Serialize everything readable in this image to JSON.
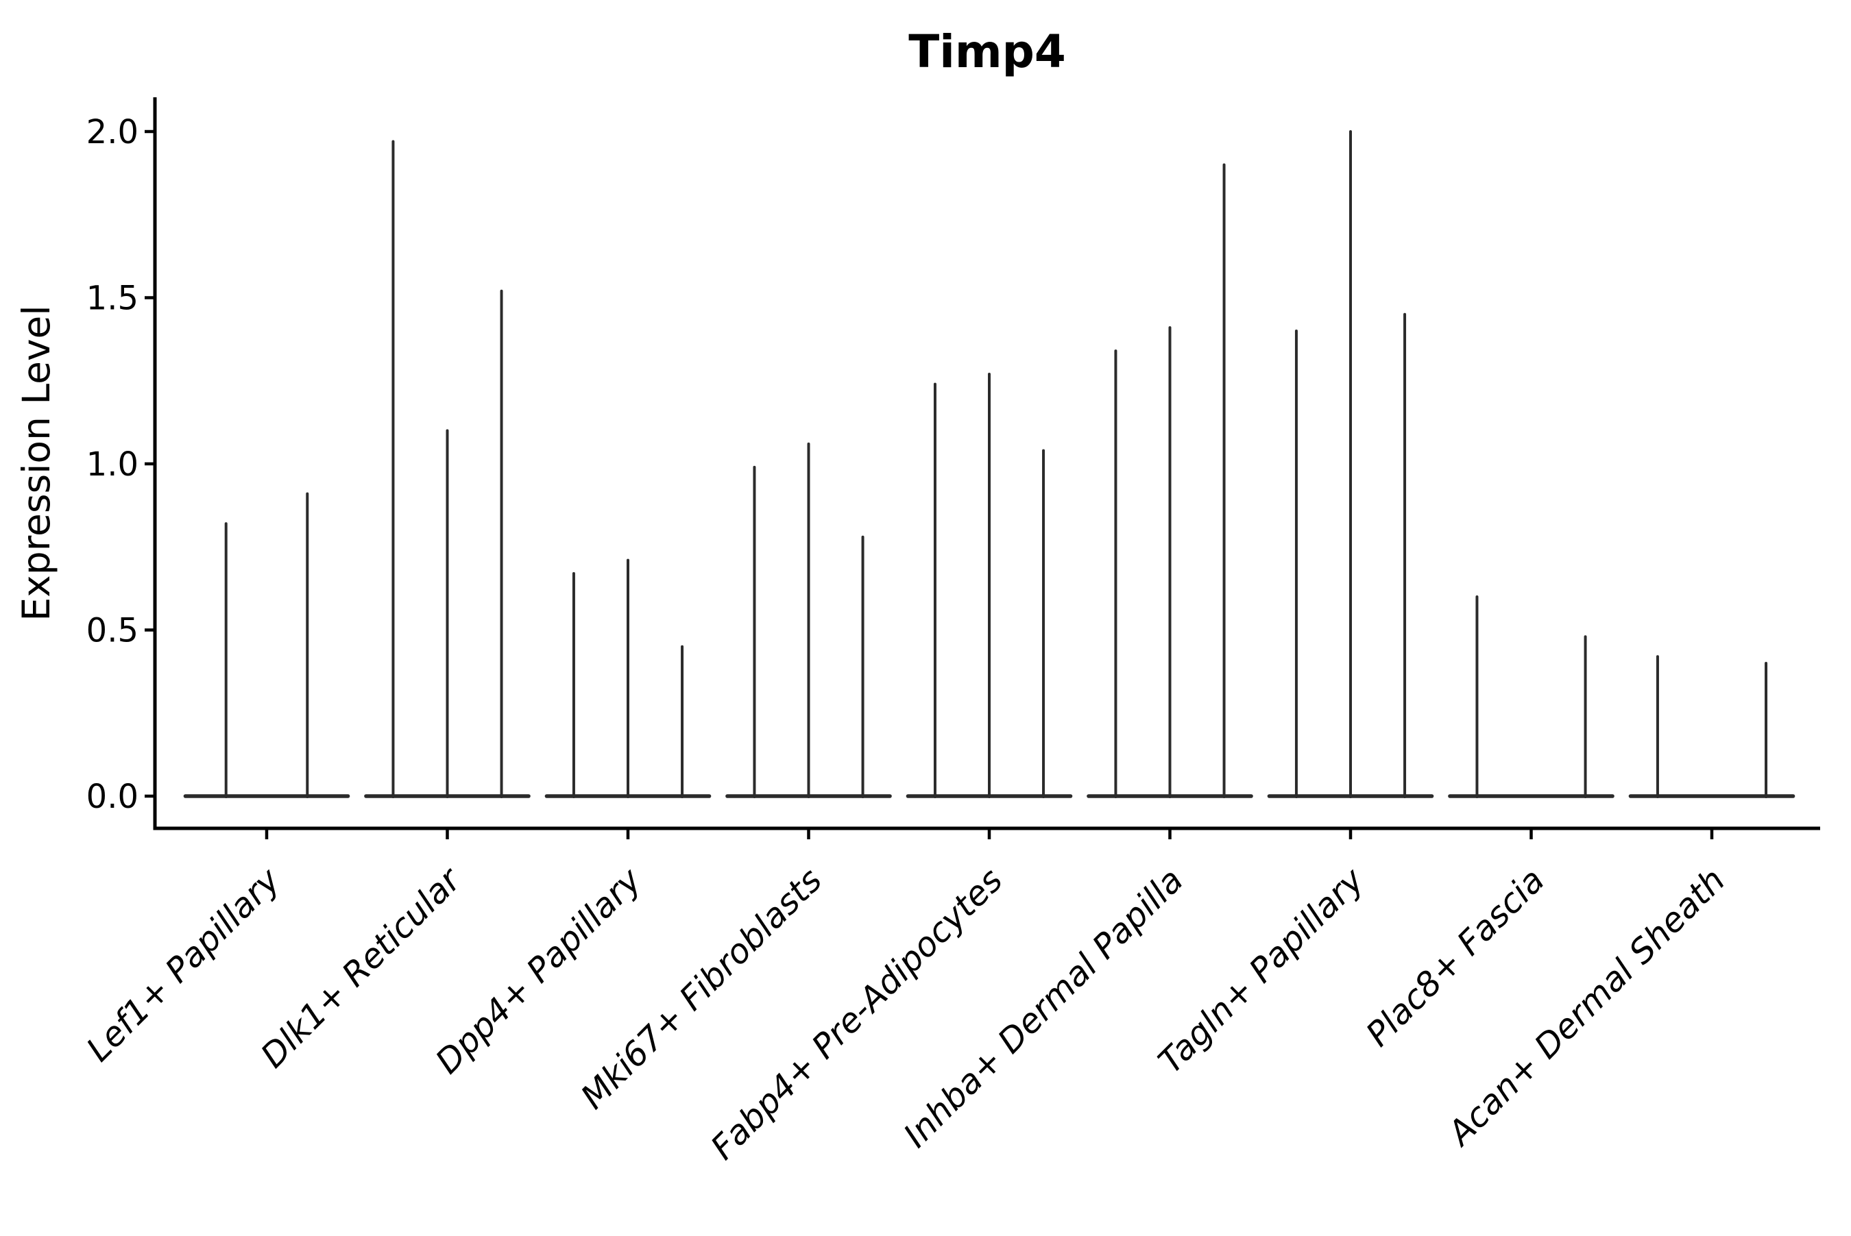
{
  "page": {
    "background": "#ffffff"
  },
  "chart_data": {
    "type": "violin",
    "title": "Timp4",
    "ylabel": "Expression Level",
    "xlabel": "",
    "grid": false,
    "legend": "none",
    "y_axis": {
      "ticks": [
        2.0,
        1.5,
        1.0,
        0.5,
        0.0
      ],
      "tick_labels": [
        "2.0",
        "1.5",
        "1.0",
        "0.5",
        "0.0"
      ],
      "range_shown": [
        0.0,
        2.0
      ]
    },
    "categories": [
      "Lef1+ Papillary",
      "Dlk1+ Reticular",
      "Dpp4+ Papillary",
      "Mki67+ Fibroblasts",
      "Fabp4+ Pre-Adipocytes",
      "Inhba+ Dermal Papilla",
      "Tagln+ Papillary",
      "Plac8+ Fascia",
      "Acan+ Dermal Sheath"
    ],
    "groups": [
      {
        "label": "Lef1+ Papillary",
        "violin_maxima": [
          0.82,
          0.91
        ]
      },
      {
        "label": "Dlk1+ Reticular",
        "violin_maxima": [
          1.97,
          1.1,
          1.52
        ]
      },
      {
        "label": "Dpp4+ Papillary",
        "violin_maxima": [
          0.67,
          0.71,
          0.45
        ]
      },
      {
        "label": "Mki67+ Fibroblasts",
        "violin_maxima": [
          0.99,
          1.06,
          0.78
        ]
      },
      {
        "label": "Fabp4+ Pre-Adipocytes",
        "violin_maxima": [
          1.24,
          1.27,
          1.04
        ]
      },
      {
        "label": "Inhba+ Dermal Papilla",
        "violin_maxima": [
          1.34,
          1.41,
          1.9
        ]
      },
      {
        "label": "Tagln+ Papillary",
        "violin_maxima": [
          1.4,
          2.0,
          1.45
        ]
      },
      {
        "label": "Plac8+ Fascia",
        "violin_maxima": [
          0.6,
          0.0,
          0.48
        ]
      },
      {
        "label": "Acan+ Dermal Sheath",
        "violin_maxima": [
          0.42,
          0.0,
          0.4
        ]
      }
    ],
    "style": {
      "violin_color": "#2b2b2b",
      "axis_color": "#000000",
      "text_color": "#000000"
    }
  }
}
